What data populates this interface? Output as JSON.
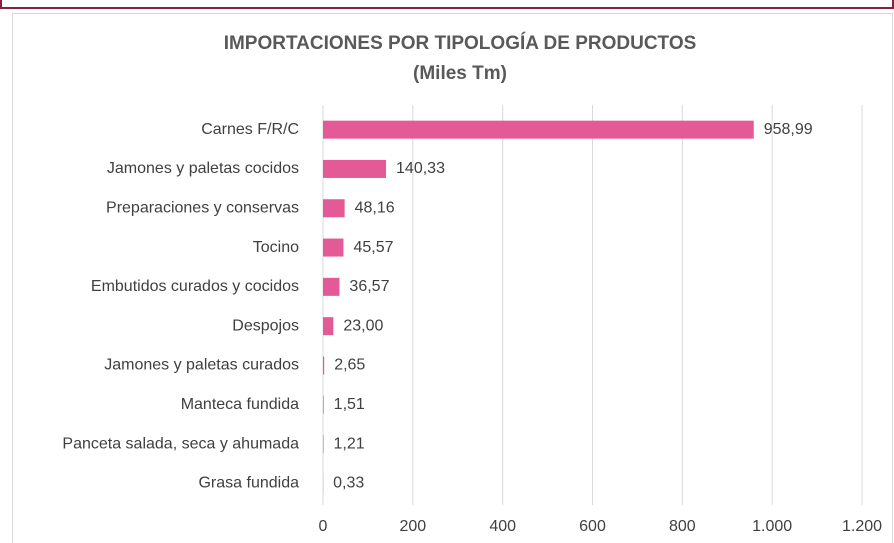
{
  "chart_data": {
    "type": "bar",
    "orientation": "horizontal",
    "title": "IMPORTACIONES  POR TIPOLOGÍA DE PRODUCTOS",
    "subtitle": "(Miles Tm)",
    "categories": [
      "Carnes F/R/C",
      "Jamones y paletas cocidos",
      "Preparaciones y conservas",
      "Tocino",
      "Embutidos curados y cocidos",
      "Despojos",
      "Jamones y paletas curados",
      "Manteca fundida",
      "Panceta salada, seca y ahumada",
      "Grasa fundida"
    ],
    "values": [
      958.99,
      140.33,
      48.16,
      45.57,
      36.57,
      23.0,
      2.65,
      1.51,
      1.21,
      0.33
    ],
    "value_labels": [
      "958,99",
      "140,33",
      "48,16",
      "45,57",
      "36,57",
      "23,00",
      "2,65",
      "1,51",
      "1,21",
      "0,33"
    ],
    "color": "#e45a96",
    "xlim": [
      0,
      1200
    ],
    "xticks": [
      0,
      200,
      400,
      600,
      800,
      {
        "value": 1000,
        "label": "1.000"
      },
      {
        "value": 1200,
        "label": "1.200"
      }
    ],
    "grid": true
  }
}
